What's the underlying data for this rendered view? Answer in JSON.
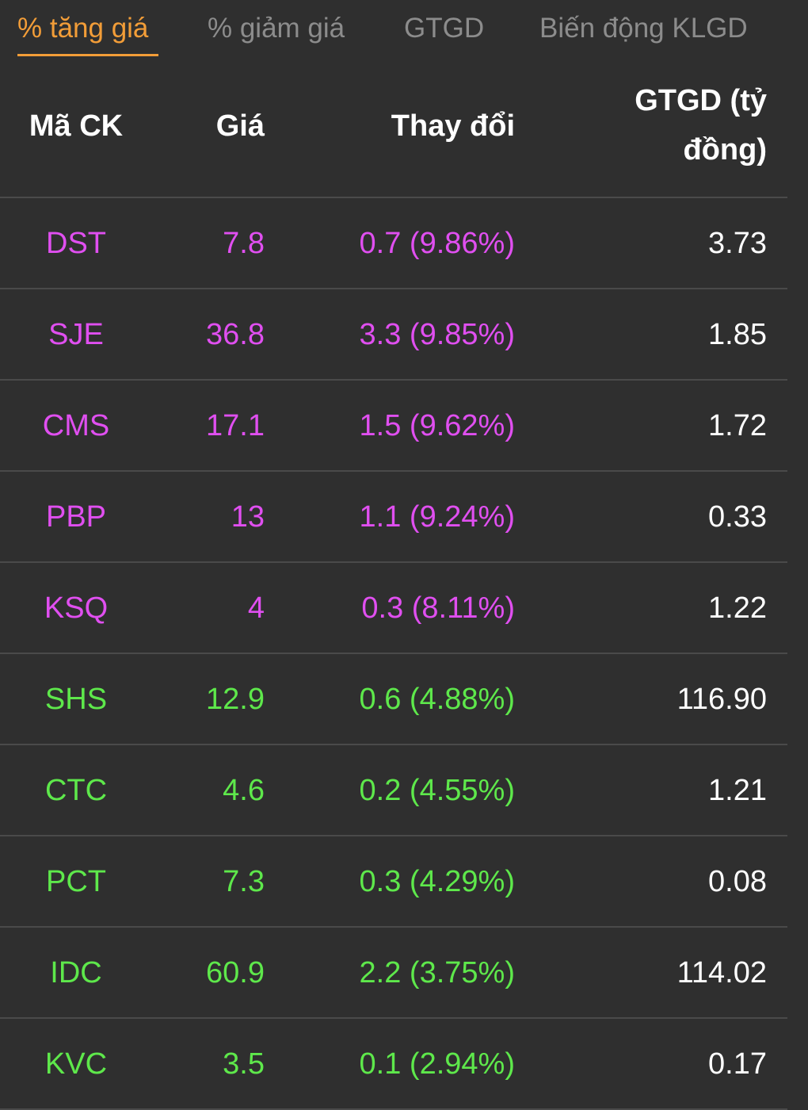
{
  "tabs": [
    {
      "label": "% tăng giá",
      "active": true
    },
    {
      "label": "% giảm giá",
      "active": false
    },
    {
      "label": "GTGD",
      "active": false
    },
    {
      "label": "Biến động KLGD",
      "active": false
    }
  ],
  "colors": {
    "accent": "#f29d38",
    "ceiling": "#e04ff0",
    "up": "#5ee84b",
    "text": "#ffffff",
    "muted": "#8c8c8c",
    "background": "#2f2f2f"
  },
  "table": {
    "headers": {
      "code": "Mã CK",
      "price": "Giá",
      "change": "Thay đổi",
      "value_line1": "GTGD (tỷ",
      "value_line2": "đồng)"
    },
    "rows": [
      {
        "code": "DST",
        "price": "7.8",
        "change": "0.7 (9.86%)",
        "value": "3.73",
        "status": "ceiling"
      },
      {
        "code": "SJE",
        "price": "36.8",
        "change": "3.3 (9.85%)",
        "value": "1.85",
        "status": "ceiling"
      },
      {
        "code": "CMS",
        "price": "17.1",
        "change": "1.5 (9.62%)",
        "value": "1.72",
        "status": "ceiling"
      },
      {
        "code": "PBP",
        "price": "13",
        "change": "1.1 (9.24%)",
        "value": "0.33",
        "status": "ceiling"
      },
      {
        "code": "KSQ",
        "price": "4",
        "change": "0.3 (8.11%)",
        "value": "1.22",
        "status": "ceiling"
      },
      {
        "code": "SHS",
        "price": "12.9",
        "change": "0.6 (4.88%)",
        "value": "116.90",
        "status": "up"
      },
      {
        "code": "CTC",
        "price": "4.6",
        "change": "0.2 (4.55%)",
        "value": "1.21",
        "status": "up"
      },
      {
        "code": "PCT",
        "price": "7.3",
        "change": "0.3 (4.29%)",
        "value": "0.08",
        "status": "up"
      },
      {
        "code": "IDC",
        "price": "60.9",
        "change": "2.2 (3.75%)",
        "value": "114.02",
        "status": "up"
      },
      {
        "code": "KVC",
        "price": "3.5",
        "change": "0.1 (2.94%)",
        "value": "0.17",
        "status": "up"
      }
    ]
  }
}
